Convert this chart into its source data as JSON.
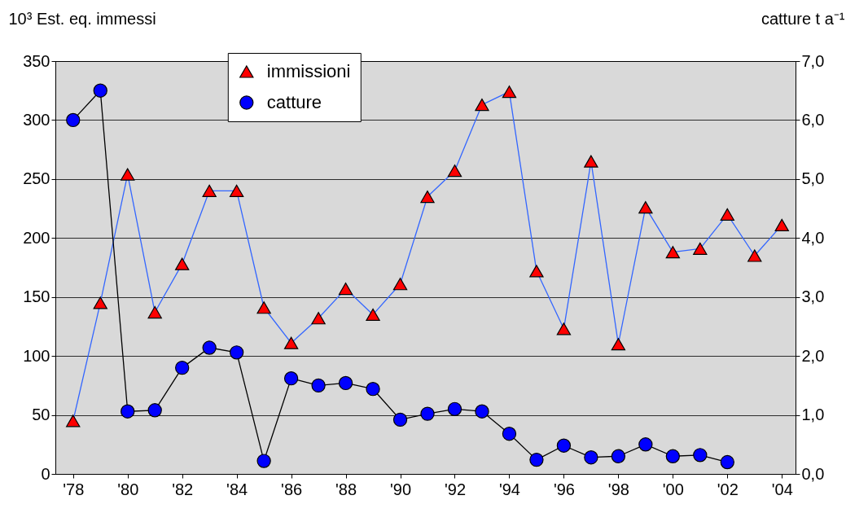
{
  "chart_data": {
    "type": "line",
    "xlabel": null,
    "ylabel": "10³ Est. eq. immessi",
    "y2label": "catture  t a⁻¹",
    "x": [
      1978,
      1979,
      1980,
      1981,
      1982,
      1983,
      1984,
      1985,
      1986,
      1987,
      1988,
      1989,
      1990,
      1991,
      1992,
      1993,
      1994,
      1995,
      1996,
      1997,
      1998,
      1999,
      2000,
      2001,
      2002,
      2003,
      2004
    ],
    "xlim": [
      1977.35,
      2004.5
    ],
    "xticks": [
      {
        "value": 1978,
        "label": "'78"
      },
      {
        "value": 1980,
        "label": "'80"
      },
      {
        "value": 1982,
        "label": "'82"
      },
      {
        "value": 1984,
        "label": "'84"
      },
      {
        "value": 1986,
        "label": "'86"
      },
      {
        "value": 1988,
        "label": "'88"
      },
      {
        "value": 1990,
        "label": "'90"
      },
      {
        "value": 1992,
        "label": "'92"
      },
      {
        "value": 1994,
        "label": "'94"
      },
      {
        "value": 1996,
        "label": "'96"
      },
      {
        "value": 1998,
        "label": "'98"
      },
      {
        "value": 2000,
        "label": "'00"
      },
      {
        "value": 2002,
        "label": "'02"
      },
      {
        "value": 2004,
        "label": "'04"
      }
    ],
    "ylim": [
      0,
      350
    ],
    "yticks": [
      0,
      50,
      100,
      150,
      200,
      250,
      300,
      350
    ],
    "y2lim": [
      0,
      7
    ],
    "y2ticks": [
      {
        "value": 0,
        "label": "0,0"
      },
      {
        "value": 1,
        "label": "1,0"
      },
      {
        "value": 2,
        "label": "2,0"
      },
      {
        "value": 3,
        "label": "3,0"
      },
      {
        "value": 4,
        "label": "4,0"
      },
      {
        "value": 5,
        "label": "5,0"
      },
      {
        "value": 6,
        "label": "6,0"
      },
      {
        "value": 7,
        "label": "7,0"
      }
    ],
    "grid": "y",
    "legend": "top",
    "series": [
      {
        "name": "immissioni",
        "color": "#ff0000",
        "marker": "triangle",
        "values": [
          45,
          145,
          254,
          137,
          178,
          240,
          240,
          141,
          111,
          132,
          157,
          135,
          161,
          235,
          257,
          313,
          324,
          172,
          123,
          265,
          110,
          226,
          188,
          191,
          220,
          185,
          211
        ]
      },
      {
        "name": "catture",
        "color": "#0000ff",
        "marker": "circle",
        "axis": "y2",
        "values": [
          6.0,
          6.5,
          1.06,
          1.08,
          1.8,
          2.14,
          2.06,
          0.22,
          1.62,
          1.5,
          1.54,
          1.44,
          0.92,
          1.02,
          1.1,
          1.06,
          0.68,
          0.24,
          0.48,
          0.28,
          0.3,
          0.5,
          0.3,
          0.32,
          0.2,
          null,
          null
        ]
      }
    ]
  }
}
